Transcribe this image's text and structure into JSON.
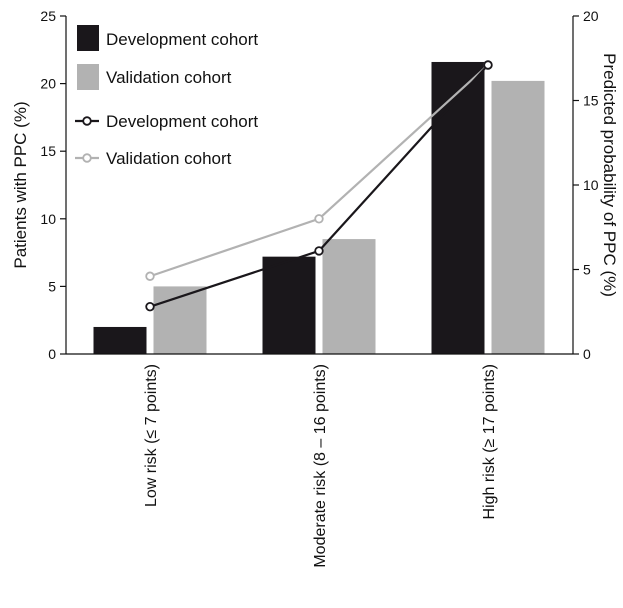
{
  "chart_data": {
    "type": "bar",
    "categories": [
      "Low risk (≤ 7 points)",
      "Moderate risk (8 – 16 points)",
      "High risk (≥ 17 points)"
    ],
    "bar_series": [
      {
        "name": "Development cohort",
        "values": [
          2.0,
          7.2,
          21.6
        ],
        "color": "#1a171b"
      },
      {
        "name": "Validation cohort",
        "values": [
          5.0,
          8.5,
          20.2
        ],
        "color": "#b2b2b2"
      }
    ],
    "line_series": [
      {
        "name": "Development cohort",
        "values": [
          2.8,
          6.1,
          17.1
        ],
        "color": "#1a171b"
      },
      {
        "name": "Validation cohort",
        "values": [
          4.6,
          8.0,
          17.1
        ],
        "color": "#b2b2b2"
      }
    ],
    "ylabel_left": "Patients with PPC (%)",
    "ylabel_right": "Predicted probability of PPC (%)",
    "ylim_left": [
      0,
      25
    ],
    "ylim_right": [
      0,
      20
    ],
    "yticks_left": [
      "0",
      "5",
      "10",
      "15",
      "20",
      "25"
    ],
    "yticks_right": [
      "0",
      "5",
      "10",
      "15",
      "20"
    ],
    "legend_position": "top-left",
    "grid": false
  }
}
